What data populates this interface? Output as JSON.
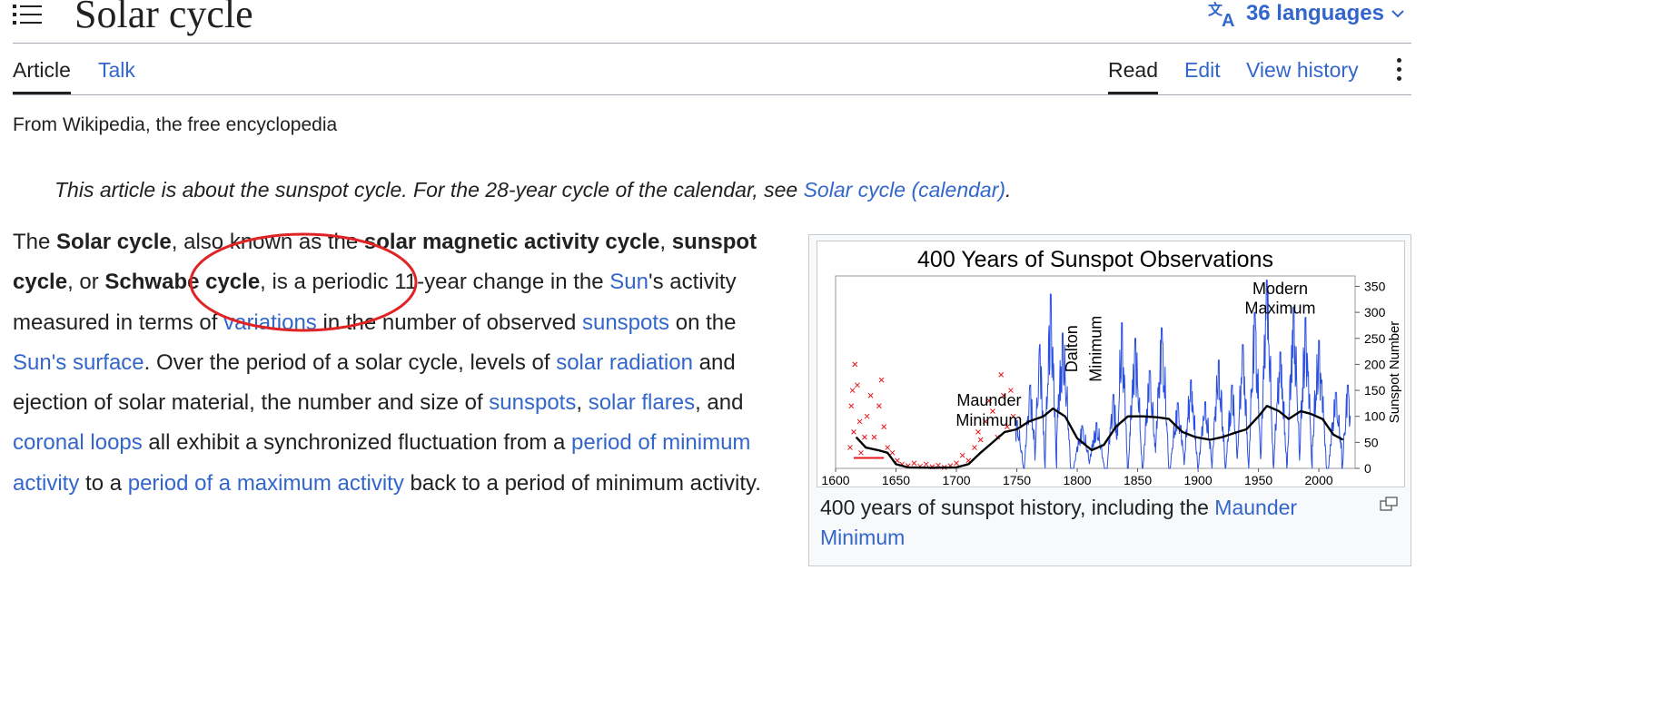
{
  "page": {
    "title": "Solar cycle",
    "languages_label": "36 languages",
    "tabs_left": [
      "Article",
      "Talk"
    ],
    "tabs_right": [
      "Read",
      "Edit",
      "View history"
    ],
    "tagline": "From Wikipedia, the free encyclopedia",
    "hatnote": {
      "text": "This article is about the sunspot cycle. For the 28-year cycle of the calendar, see ",
      "link": "Solar cycle (calendar)",
      "end": "."
    }
  },
  "lead": {
    "t1": "The ",
    "b1": "Solar cycle",
    "t2": ", also known as the ",
    "b2": "solar magnetic activity cycle",
    "t3": ", ",
    "b3": "sunspot cycle",
    "t4": ", or ",
    "b4": "Schwabe cycle",
    "t5": ", is a periodic 11-year change in the ",
    "l1": "Sun",
    "t6": "'s activity measured in terms of ",
    "l2": "variations",
    "t7": " in the number of observed ",
    "l3": "sunspots",
    "t8": " on the ",
    "l4": "Sun's surface",
    "t9": ". Over the period of a solar cycle, levels of ",
    "l5": "solar radiation",
    "t10": " and ejection of solar material, the number and size of ",
    "l6": "sunspots",
    "t11": ", ",
    "l7": "solar flares",
    "t12": ", and ",
    "l8": "coronal loops",
    "t13": " all exhibit a synchronized fluctuation from a ",
    "l9": "period of minimum activity",
    "t14": " to a ",
    "l10": "period of a maximum activity",
    "t15": " back to a period of minimum activity."
  },
  "figure": {
    "caption_text": "400 years of sunspot history, including the ",
    "caption_link": "Maunder Minimum"
  },
  "chart_data": {
    "type": "line",
    "title": "400 Years of Sunspot Observations",
    "ylabel": "Sunspot Number",
    "xlim": [
      1600,
      2030
    ],
    "ylim": [
      0,
      370
    ],
    "x_ticks": [
      1600,
      1650,
      1700,
      1750,
      1800,
      1850,
      1900,
      1950,
      2000
    ],
    "y_ticks": [
      0,
      50,
      100,
      150,
      200,
      250,
      300,
      350
    ],
    "annotations": [
      {
        "text": "Maunder",
        "x": 1727,
        "y": 120
      },
      {
        "text": "Minimum",
        "x": 1727,
        "y": 82
      },
      {
        "text": "Dalton",
        "x": 1800,
        "y": 230
      },
      {
        "text": "Minimum",
        "x": 1820,
        "y": 230
      },
      {
        "text": "Modern",
        "x": 1968,
        "y": 335
      },
      {
        "text": "Maximum",
        "x": 1968,
        "y": 298
      }
    ],
    "series": [
      {
        "name": "",
        "color": "#2a4fe0",
        "peaks": [
          [
            1750,
            92
          ],
          [
            1761,
            160
          ],
          [
            1769,
            238
          ],
          [
            1778,
            335
          ],
          [
            1788,
            260
          ],
          [
            1804,
            82
          ],
          [
            1816,
            88
          ],
          [
            1830,
            142
          ],
          [
            1837,
            280
          ],
          [
            1848,
            250
          ],
          [
            1860,
            188
          ],
          [
            1870,
            270
          ],
          [
            1883,
            126
          ],
          [
            1894,
            170
          ],
          [
            1906,
            128
          ],
          [
            1917,
            208
          ],
          [
            1928,
            160
          ],
          [
            1937,
            238
          ],
          [
            1947,
            300
          ],
          [
            1957,
            362
          ],
          [
            1968,
            224
          ],
          [
            1979,
            310
          ],
          [
            1989,
            290
          ],
          [
            2000,
            246
          ],
          [
            2014,
            146
          ],
          [
            2024,
            160
          ]
        ]
      },
      {
        "name": "",
        "color": "#e8151b",
        "points": [
          [
            1612,
            40
          ],
          [
            1613,
            120
          ],
          [
            1614,
            150
          ],
          [
            1615,
            70
          ],
          [
            1616,
            200
          ],
          [
            1618,
            160
          ],
          [
            1620,
            90
          ],
          [
            1621,
            30
          ],
          [
            1624,
            60
          ],
          [
            1626,
            100
          ],
          [
            1629,
            140
          ],
          [
            1632,
            60
          ],
          [
            1636,
            120
          ],
          [
            1638,
            170
          ],
          [
            1640,
            80
          ],
          [
            1643,
            40
          ],
          [
            1647,
            30
          ],
          [
            1651,
            15
          ],
          [
            1655,
            8
          ],
          [
            1660,
            5
          ],
          [
            1665,
            10
          ],
          [
            1670,
            4
          ],
          [
            1675,
            8
          ],
          [
            1680,
            3
          ],
          [
            1685,
            6
          ],
          [
            1690,
            2
          ],
          [
            1695,
            5
          ],
          [
            1700,
            10
          ],
          [
            1705,
            25
          ],
          [
            1710,
            15
          ],
          [
            1715,
            40
          ],
          [
            1718,
            70
          ],
          [
            1720,
            55
          ],
          [
            1724,
            90
          ],
          [
            1727,
            130
          ],
          [
            1730,
            110
          ],
          [
            1734,
            60
          ],
          [
            1737,
            180
          ],
          [
            1739,
            140
          ],
          [
            1742,
            80
          ],
          [
            1745,
            150
          ],
          [
            1747,
            100
          ]
        ]
      },
      {
        "name": "",
        "color": "#000000",
        "points": [
          [
            1617,
            60
          ],
          [
            1625,
            40
          ],
          [
            1635,
            35
          ],
          [
            1643,
            30
          ],
          [
            1650,
            8
          ],
          [
            1660,
            2
          ],
          [
            1680,
            1
          ],
          [
            1700,
            2
          ],
          [
            1710,
            8
          ],
          [
            1720,
            30
          ],
          [
            1730,
            50
          ],
          [
            1740,
            70
          ],
          [
            1750,
            75
          ],
          [
            1760,
            90
          ],
          [
            1772,
            100
          ],
          [
            1780,
            115
          ],
          [
            1790,
            100
          ],
          [
            1800,
            58
          ],
          [
            1812,
            35
          ],
          [
            1822,
            45
          ],
          [
            1832,
            80
          ],
          [
            1842,
            100
          ],
          [
            1855,
            100
          ],
          [
            1867,
            98
          ],
          [
            1876,
            95
          ],
          [
            1887,
            70
          ],
          [
            1898,
            60
          ],
          [
            1910,
            55
          ],
          [
            1920,
            60
          ],
          [
            1930,
            68
          ],
          [
            1940,
            75
          ],
          [
            1950,
            100
          ],
          [
            1957,
            120
          ],
          [
            1967,
            110
          ],
          [
            1975,
            95
          ],
          [
            1985,
            110
          ],
          [
            1993,
            105
          ],
          [
            2003,
            95
          ],
          [
            2012,
            65
          ],
          [
            2020,
            55
          ]
        ]
      }
    ]
  }
}
